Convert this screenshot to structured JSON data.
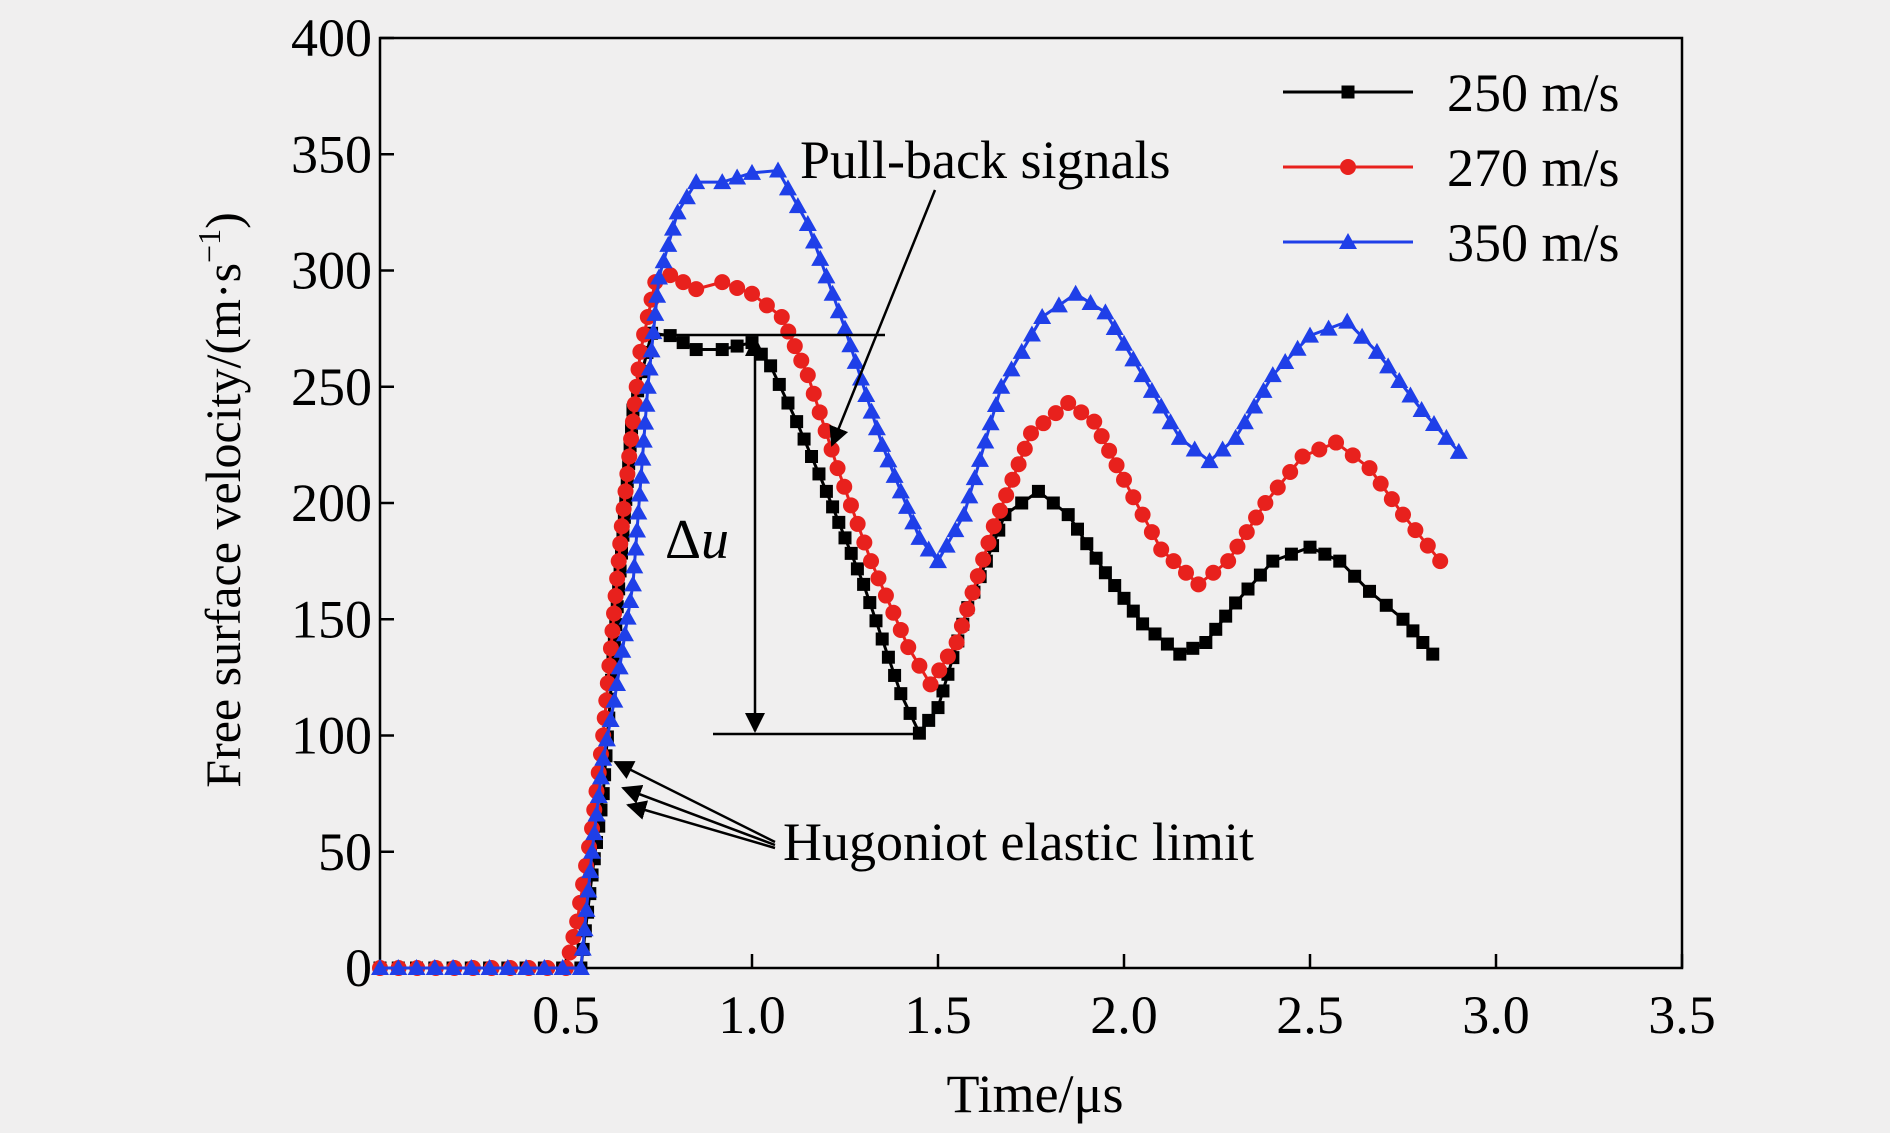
{
  "chart_data": {
    "type": "line",
    "xlabel": "Time/μs",
    "ylabel_prefix": "Free surface velocity/(m·s",
    "ylabel_sup": "−1",
    "ylabel_suffix": ")",
    "xlim": [
      0,
      3.5
    ],
    "ylim": [
      0,
      400
    ],
    "xticks": [
      0.5,
      1.0,
      1.5,
      2.0,
      2.5,
      3.0,
      3.5
    ],
    "xtick_labels": [
      "0.5",
      "1.0",
      "1.5",
      "2.0",
      "2.5",
      "3.0",
      "3.5"
    ],
    "yticks": [
      0,
      50,
      100,
      150,
      200,
      250,
      300,
      350,
      400
    ],
    "ytick_labels": [
      "0",
      "50",
      "100",
      "150",
      "200",
      "250",
      "300",
      "350",
      "400"
    ],
    "grid": false,
    "legend_position": "top-right",
    "series": [
      {
        "name": "250 m/s",
        "color": "#000000",
        "marker": "square",
        "x": [
          0.0,
          0.54,
          0.57,
          0.6,
          0.63,
          0.68,
          0.73,
          0.78,
          0.85,
          0.92,
          1.0,
          1.05,
          1.12,
          1.2,
          1.3,
          1.4,
          1.45,
          1.5,
          1.58,
          1.68,
          1.77,
          1.85,
          1.95,
          2.05,
          2.15,
          2.22,
          2.3,
          2.4,
          2.5,
          2.58,
          2.66,
          2.75,
          2.83
        ],
        "y": [
          0,
          0,
          40,
          75,
          140,
          240,
          273,
          272,
          266,
          266,
          269,
          259,
          235,
          205,
          165,
          118,
          101,
          112,
          155,
          195,
          205,
          195,
          170,
          148,
          135,
          140,
          157,
          175,
          181,
          175,
          162,
          150,
          135
        ]
      },
      {
        "name": "270 m/s",
        "color": "#e8211d",
        "marker": "circle",
        "x": [
          0.0,
          0.5,
          0.53,
          0.57,
          0.6,
          0.65,
          0.7,
          0.74,
          0.78,
          0.85,
          0.92,
          1.0,
          1.08,
          1.15,
          1.23,
          1.32,
          1.42,
          1.48,
          1.55,
          1.65,
          1.75,
          1.85,
          1.92,
          2.0,
          2.1,
          2.2,
          2.28,
          2.38,
          2.48,
          2.57,
          2.66,
          2.75,
          2.85
        ],
        "y": [
          0,
          0,
          20,
          60,
          100,
          190,
          265,
          295,
          298,
          292,
          295,
          290,
          280,
          255,
          215,
          175,
          138,
          122,
          140,
          190,
          230,
          243,
          235,
          210,
          180,
          165,
          175,
          200,
          220,
          226,
          215,
          195,
          175
        ]
      },
      {
        "name": "350 m/s",
        "color": "#1f3fe8",
        "marker": "triangle",
        "x": [
          0.0,
          0.54,
          0.57,
          0.6,
          0.63,
          0.68,
          0.72,
          0.75,
          0.8,
          0.85,
          0.92,
          1.0,
          1.07,
          1.15,
          1.25,
          1.35,
          1.45,
          1.5,
          1.57,
          1.67,
          1.78,
          1.87,
          1.95,
          2.05,
          2.15,
          2.23,
          2.3,
          2.4,
          2.5,
          2.6,
          2.68,
          2.8,
          2.9
        ],
        "y": [
          0,
          0,
          50,
          90,
          115,
          165,
          250,
          297,
          325,
          338,
          338,
          342,
          343,
          320,
          275,
          225,
          185,
          175,
          195,
          250,
          280,
          290,
          282,
          255,
          228,
          218,
          228,
          255,
          272,
          278,
          265,
          240,
          222
        ]
      }
    ],
    "annotations": {
      "pullback": "Pull-back signals",
      "delta_u": "Δ",
      "delta_u_var": "u",
      "hel": "Hugoniot elastic limit"
    }
  }
}
